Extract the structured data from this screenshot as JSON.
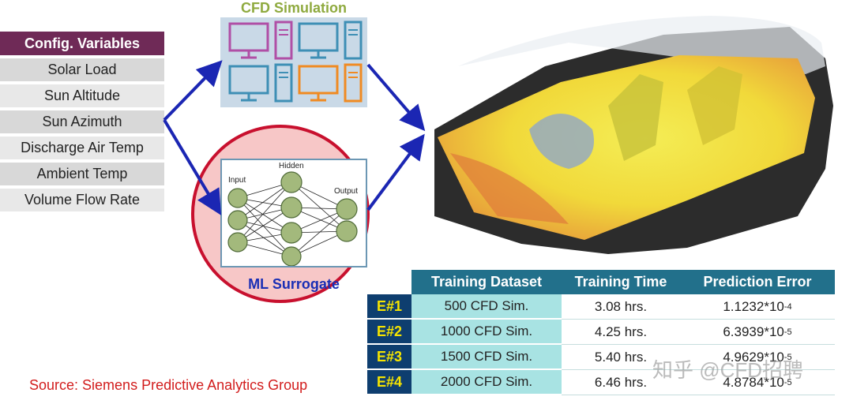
{
  "config": {
    "title": "Config. Variables",
    "items": [
      {
        "label": "Solar Load"
      },
      {
        "label": "Sun Altitude"
      },
      {
        "label": "Sun Azimuth"
      },
      {
        "label": "Discharge Air Temp"
      },
      {
        "label": "Ambient Temp"
      },
      {
        "label": "Volume Flow Rate"
      }
    ]
  },
  "cfd": {
    "title": "CFD Simulation",
    "computers": [
      {
        "color": "#b04fa6"
      },
      {
        "color": "#3e8fb5"
      },
      {
        "color": "#3e8fb5"
      },
      {
        "color": "#f08a22"
      }
    ]
  },
  "ml": {
    "title": "ML Surrogate",
    "layers": {
      "input": "Input",
      "hidden": "Hidden",
      "output": "Output"
    }
  },
  "results": {
    "headers": [
      "Training Dataset",
      "Training Time",
      "Prediction Error"
    ],
    "rows": [
      {
        "label": "E#1",
        "dataset": "500 CFD Sim.",
        "time": "3.08 hrs.",
        "error_base": "1.1232*10",
        "error_exp": "-4"
      },
      {
        "label": "E#2",
        "dataset": "1000 CFD Sim.",
        "time": "4.25 hrs.",
        "error_base": "6.3939*10",
        "error_exp": "-5"
      },
      {
        "label": "E#3",
        "dataset": "1500 CFD Sim.",
        "time": "5.40 hrs.",
        "error_base": "4.9629*10",
        "error_exp": "-5"
      },
      {
        "label": "E#4",
        "dataset": "2000 CFD Sim.",
        "time": "6.46 hrs.",
        "error_base": "4.8784*10",
        "error_exp": "-5"
      }
    ]
  },
  "source": "Source: Siemens Predictive Analytics Group",
  "watermark": "知乎 @CFD招聘",
  "colors": {
    "config_header": "#6f2a57",
    "arrow": "#1b26b3",
    "table_header": "#22708b",
    "row_label_bg": "#0e3e6f",
    "row_label_text": "#f6e400",
    "ml_circle": "#c8102e"
  }
}
